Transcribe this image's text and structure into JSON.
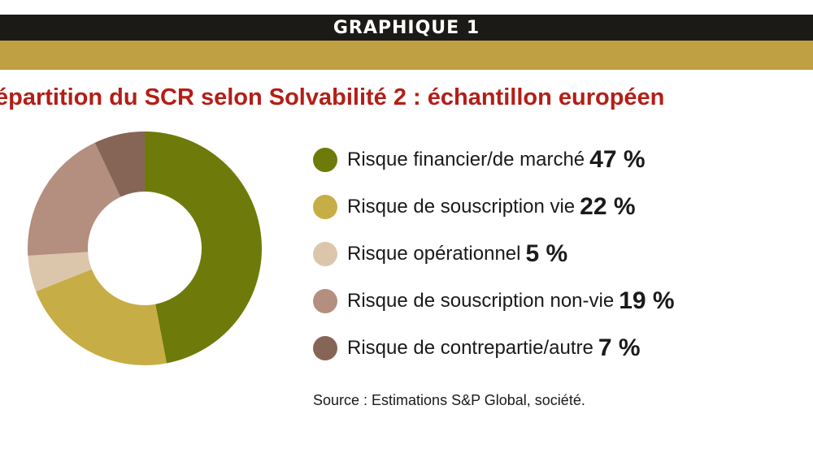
{
  "header": {
    "label": "GRAPHIQUE 1"
  },
  "colors": {
    "header_bg": "#1c1a17",
    "gold_band": "#bfa042",
    "title": "#b41e16"
  },
  "chart_data": {
    "type": "pie",
    "title": "épartition du SCR selon Solvabilité 2 : échantillon européen",
    "donut": true,
    "legend_position": "right",
    "series": [
      {
        "name": "Risque financier/de marché",
        "value": 47,
        "value_label": "47 %",
        "color": "#6e7b0a"
      },
      {
        "name": "Risque de souscription vie",
        "value": 22,
        "value_label": "22 %",
        "color": "#c7ad45"
      },
      {
        "name": "Risque opérationnel",
        "value": 5,
        "value_label": "5 %",
        "color": "#dcc6ab"
      },
      {
        "name": "Risque de souscription non-vie",
        "value": 19,
        "value_label": "19 %",
        "color": "#b48e7f"
      },
      {
        "name": "Risque de contrepartie/autre",
        "value": 7,
        "value_label": "7 %",
        "color": "#876556"
      }
    ]
  },
  "source": "Source : Estimations S&P Global, société."
}
